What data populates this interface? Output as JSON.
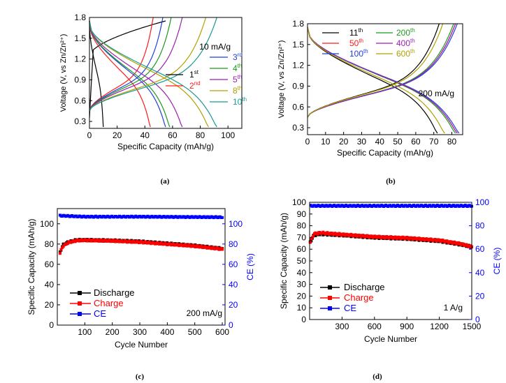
{
  "chart_data": [
    {
      "panel": "(a)",
      "type": "line",
      "xlabel": "Specific Capacity (mAh/g)",
      "ylabel": "Voltage (V, vs Zn/Zn²⁺)",
      "xlim": [
        0,
        110
      ],
      "ylim": [
        0.2,
        1.8
      ],
      "xticks": [
        "0",
        "20",
        "40",
        "60",
        "80",
        "100"
      ],
      "yticks": [
        "0.3",
        "0.6",
        "0.9",
        "1.2",
        "1.5",
        "1.8"
      ],
      "annotation": "10 mA/g",
      "legend": [
        {
          "base": "3",
          "sup": "rd",
          "color": "#1f3fe0"
        },
        {
          "base": "4",
          "sup": "th",
          "color": "#1a9a1a"
        },
        {
          "base": "5",
          "sup": "th",
          "color": "#9a1fb0"
        },
        {
          "base": "8",
          "sup": "th",
          "color": "#b0a000"
        },
        {
          "base": "10",
          "sup": "th",
          "color": "#1a9a90"
        }
      ],
      "legend2": [
        {
          "base": "1",
          "sup": "st",
          "color": "#000000"
        },
        {
          "base": "2",
          "sup": "nd",
          "color": "#ff1a1a"
        }
      ],
      "series": [
        {
          "name": "1st",
          "color": "#000000",
          "qmax": 55,
          "dmax": 10
        },
        {
          "name": "2nd",
          "color": "#ff1a1a",
          "qmax": 46,
          "dmax": 44
        },
        {
          "name": "3rd",
          "color": "#1f3fe0",
          "qmax": 53,
          "dmax": 55
        },
        {
          "name": "4th",
          "color": "#1a9a1a",
          "qmax": 59,
          "dmax": 58
        },
        {
          "name": "5th",
          "color": "#9a1fb0",
          "qmax": 67,
          "dmax": 67
        },
        {
          "name": "8th",
          "color": "#b0a000",
          "qmax": 84,
          "dmax": 86
        },
        {
          "name": "10th",
          "color": "#1a9a90",
          "qmax": 92,
          "dmax": 92
        }
      ]
    },
    {
      "panel": "(b)",
      "type": "line",
      "xlabel": "Specific Capacity (mAh/g)",
      "ylabel": "Voltage (V, vs Zn/Zn²⁺)",
      "xlim": [
        0,
        86
      ],
      "ylim": [
        0.2,
        1.8
      ],
      "xticks": [
        "0",
        "10",
        "20",
        "30",
        "40",
        "50",
        "60",
        "70",
        "80"
      ],
      "yticks": [
        "0.3",
        "0.6",
        "0.9",
        "1.2",
        "1.5",
        "1.8"
      ],
      "annotation": "200 mA/g",
      "legend": [
        {
          "base": "11",
          "sup": "th",
          "color": "#000000"
        },
        {
          "base": "200",
          "sup": "th",
          "color": "#1a9a1a"
        },
        {
          "base": "50",
          "sup": "th",
          "color": "#ff1a1a"
        },
        {
          "base": "400",
          "sup": "th",
          "color": "#9a1fb0"
        },
        {
          "base": "100",
          "sup": "th",
          "color": "#1f3fe0"
        },
        {
          "base": "600",
          "sup": "th",
          "color": "#b0a000"
        }
      ],
      "series": [
        {
          "name": "11th",
          "color": "#000000",
          "qmax": 73,
          "dmax": 72
        },
        {
          "name": "50th",
          "color": "#ff1a1a",
          "qmax": 82,
          "dmax": 83
        },
        {
          "name": "100th",
          "color": "#1f3fe0",
          "qmax": 83,
          "dmax": 84
        },
        {
          "name": "200th",
          "color": "#1a9a1a",
          "qmax": 81,
          "dmax": 82
        },
        {
          "name": "400th",
          "color": "#9a1fb0",
          "qmax": 82,
          "dmax": 83
        },
        {
          "name": "600th",
          "color": "#b0a000",
          "qmax": 75,
          "dmax": 76
        }
      ]
    },
    {
      "panel": "(c)",
      "type": "scatter",
      "xlabel": "Cycle Number",
      "ylabel": "Specific Capacity (mAh/g)",
      "y2label": "CE (%)",
      "xlim": [
        0,
        610
      ],
      "ylim": [
        0,
        115
      ],
      "y2lim": [
        0,
        115
      ],
      "xticks": [
        "100",
        "200",
        "300",
        "400",
        "500",
        "600"
      ],
      "yticks": [
        "0",
        "20",
        "40",
        "60",
        "80",
        "100"
      ],
      "y2ticks": [
        "0",
        "20",
        "40",
        "60",
        "80",
        "100"
      ],
      "annotation": "200 mA/g",
      "legend": [
        {
          "label": "Discharge",
          "color": "#000000"
        },
        {
          "label": "Charge",
          "color": "#ff0000"
        },
        {
          "label": "CE",
          "color": "#0000ff"
        }
      ],
      "series": [
        {
          "name": "Discharge",
          "color": "#000000",
          "points": [
            [
              10,
              72
            ],
            [
              20,
              79
            ],
            [
              40,
              82
            ],
            [
              70,
              84
            ],
            [
              100,
              84
            ],
            [
              200,
              83.5
            ],
            [
              300,
              82.5
            ],
            [
              400,
              80.5
            ],
            [
              500,
              78.5
            ],
            [
              600,
              75.5
            ]
          ]
        },
        {
          "name": "Charge",
          "color": "#ff0000",
          "points": [
            [
              10,
              71
            ],
            [
              20,
              78
            ],
            [
              40,
              81.5
            ],
            [
              70,
              83.5
            ],
            [
              100,
              83.8
            ],
            [
              200,
              83.2
            ],
            [
              300,
              82
            ],
            [
              400,
              80
            ],
            [
              500,
              78
            ],
            [
              600,
              75
            ]
          ]
        },
        {
          "name": "CE",
          "color": "#0000ff",
          "points": [
            [
              10,
              108
            ],
            [
              100,
              107
            ],
            [
              300,
              107
            ],
            [
              600,
              106.5
            ]
          ]
        }
      ]
    },
    {
      "panel": "(d)",
      "type": "scatter",
      "xlabel": "Cycle Number",
      "ylabel": "Specific Capacity (mAh/g)",
      "y2label": "CE (%)",
      "xlim": [
        0,
        1500
      ],
      "ylim": [
        0,
        100
      ],
      "y2lim": [
        0,
        100
      ],
      "xticks": [
        "300",
        "600",
        "900",
        "1200",
        "1500"
      ],
      "yticks": [
        "0",
        "10",
        "20",
        "30",
        "40",
        "50",
        "60",
        "70",
        "80",
        "90",
        "100"
      ],
      "y2ticks": [
        "0",
        "20",
        "40",
        "60",
        "80",
        "100"
      ],
      "annotation": "1 A/g",
      "legend": [
        {
          "label": "Discharge",
          "color": "#000000"
        },
        {
          "label": "Charge",
          "color": "#ff0000"
        },
        {
          "label": "CE",
          "color": "#0000ff"
        }
      ],
      "series": [
        {
          "name": "Discharge",
          "color": "#000000",
          "points": [
            [
              5,
              66
            ],
            [
              40,
              72
            ],
            [
              100,
              73
            ],
            [
              300,
              72
            ],
            [
              600,
              70
            ],
            [
              900,
              69
            ],
            [
              1200,
              67
            ],
            [
              1400,
              64
            ],
            [
              1500,
              62
            ]
          ]
        },
        {
          "name": "Charge",
          "color": "#ff0000",
          "points": [
            [
              5,
              66
            ],
            [
              40,
              73
            ],
            [
              100,
              74
            ],
            [
              300,
              72.5
            ],
            [
              600,
              70.5
            ],
            [
              900,
              69.5
            ],
            [
              1200,
              67.5
            ],
            [
              1400,
              64.5
            ],
            [
              1500,
              62
            ]
          ]
        },
        {
          "name": "CE",
          "color": "#0000ff",
          "points": [
            [
              10,
              97
            ],
            [
              300,
              97
            ],
            [
              600,
              97
            ],
            [
              900,
              97
            ],
            [
              1200,
              97
            ],
            [
              1500,
              97
            ]
          ]
        }
      ]
    }
  ],
  "panel_labels": [
    "(a)",
    "(b)",
    "(c)",
    "(d)"
  ]
}
